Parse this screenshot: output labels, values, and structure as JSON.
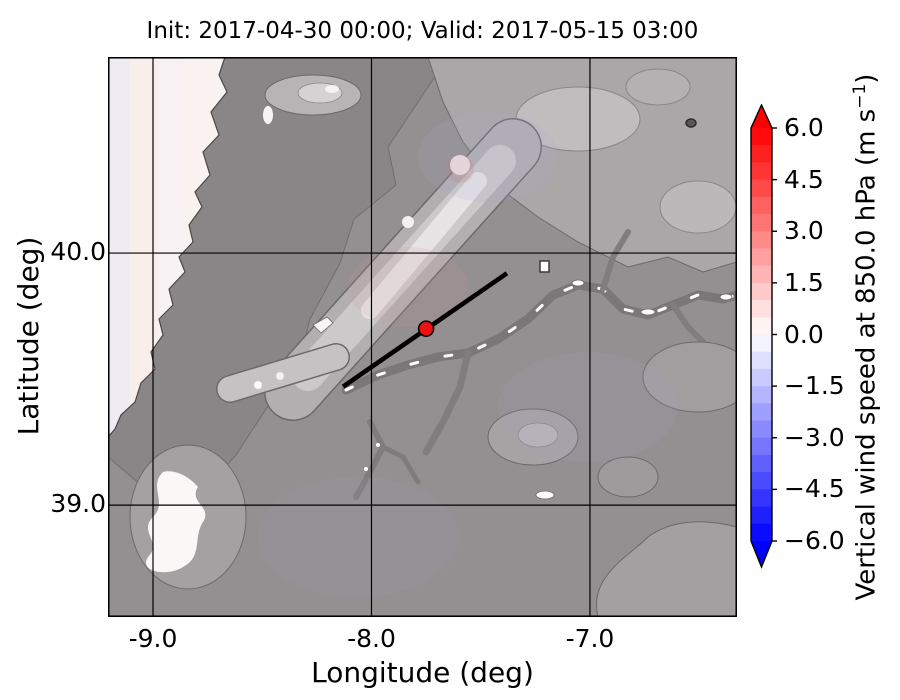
{
  "figure": {
    "title": "Init: 2017-04-30 00:00; Valid: 2017-05-15 03:00"
  },
  "xaxis": {
    "label": "Longitude (deg)",
    "ticks": [
      {
        "value": -9.0,
        "label": "-9.0"
      },
      {
        "value": -8.0,
        "label": "-8.0"
      },
      {
        "value": -7.0,
        "label": "-7.0"
      }
    ]
  },
  "yaxis": {
    "label": "Latitude (deg)",
    "ticks": [
      {
        "value": 40.0,
        "label": "40.0"
      },
      {
        "value": 39.0,
        "label": "39.0"
      }
    ]
  },
  "colorbar": {
    "label_main": "Vertical wind speed at 850.0 hPa (m s",
    "label_sup": "−1",
    "label_close": ")",
    "colormap": "bwr",
    "vmin": -6.0,
    "vmax": 6.0,
    "step": 0.5,
    "extend": "both",
    "ticks": [
      {
        "value": 6.0,
        "label": "6.0"
      },
      {
        "value": 4.5,
        "label": "4.5"
      },
      {
        "value": 3.0,
        "label": "3.0"
      },
      {
        "value": 1.5,
        "label": "1.5"
      },
      {
        "value": 0.0,
        "label": "0.0"
      },
      {
        "value": -1.5,
        "label": "−1.5"
      },
      {
        "value": -3.0,
        "label": "−3.0"
      },
      {
        "value": -4.5,
        "label": "−4.5"
      },
      {
        "value": -6.0,
        "label": "−6.0"
      }
    ]
  },
  "map": {
    "extent": {
      "lon_min": -9.206,
      "lon_max": -6.327,
      "lat_min": 38.556,
      "lat_max": 40.778
    },
    "grid_lons": [
      -9.0,
      -8.0,
      -7.0
    ],
    "grid_lats": [
      40.0,
      39.0
    ],
    "marker": {
      "lon": -7.75,
      "lat": 39.7,
      "color": "#ee1111"
    },
    "cross_section": {
      "lon1": -8.13,
      "lat1": 39.47,
      "lon2": -7.38,
      "lat2": 39.92
    }
  },
  "chart_data": {
    "type": "heatmap",
    "title": "Init: 2017-04-30 00:00; Valid: 2017-05-15 03:00",
    "xlabel": "Longitude (deg)",
    "ylabel": "Latitude (deg)",
    "xlim": [
      -9.206,
      -6.327
    ],
    "ylim": [
      38.556,
      40.778
    ],
    "xticks": [
      -9.0,
      -8.0,
      -7.0
    ],
    "yticks": [
      39.0,
      40.0
    ],
    "grid": true,
    "colorbar": {
      "label": "Vertical wind speed at 850.0 hPa (m s⁻¹)",
      "range": [
        -6.0,
        6.0
      ],
      "tick_step": 1.5,
      "band_step": 0.5,
      "ticks": [
        6.0,
        4.5,
        3.0,
        1.5,
        0.0,
        -1.5,
        -3.0,
        -4.5,
        -6.0
      ],
      "colormap": "bwr",
      "extend": "both"
    },
    "field_summary": "Vertical wind speed magnitudes near 0 m/s over most of the domain (faint pink/blue tints); grayscale terrain contours of central Portugal visible beneath, ocean along western edge",
    "overlays": {
      "marker": {
        "lon": -7.75,
        "lat": 39.7
      },
      "cross_section_line": {
        "from": [
          -8.13,
          39.47
        ],
        "to": [
          -7.38,
          39.92
        ]
      }
    }
  }
}
